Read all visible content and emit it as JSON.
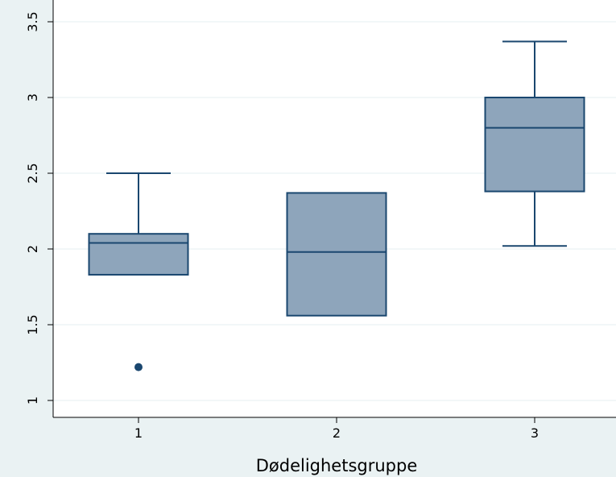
{
  "chart_data": {
    "type": "box",
    "title": "",
    "xlabel": "Dødelighetsgruppe",
    "ylabel": "",
    "ylim": [
      0.9,
      3.6
    ],
    "yticks": [
      "1",
      "1.5",
      "2",
      "2.5",
      "3",
      "3.5"
    ],
    "ytick_values": [
      1,
      1.5,
      2,
      2.5,
      3,
      3.5
    ],
    "categories": [
      "1",
      "2",
      "3"
    ],
    "boxes": [
      {
        "category": "1",
        "whisker_low": 1.83,
        "q1": 1.83,
        "median": 2.04,
        "q3": 2.1,
        "whisker_high": 2.5,
        "outliers": [
          1.22
        ]
      },
      {
        "category": "2",
        "whisker_low": 1.56,
        "q1": 1.56,
        "median": 1.98,
        "q3": 2.37,
        "whisker_high": 2.37,
        "outliers": []
      },
      {
        "category": "3",
        "whisker_low": 2.02,
        "q1": 2.38,
        "median": 2.8,
        "q3": 3.0,
        "whisker_high": 3.37,
        "outliers": []
      }
    ],
    "grid": true,
    "colors": {
      "box_fill": "#8ea5bb",
      "box_stroke": "#1a476f",
      "plot_background": "#ffffff",
      "page_background": "#eaf2f3"
    }
  }
}
